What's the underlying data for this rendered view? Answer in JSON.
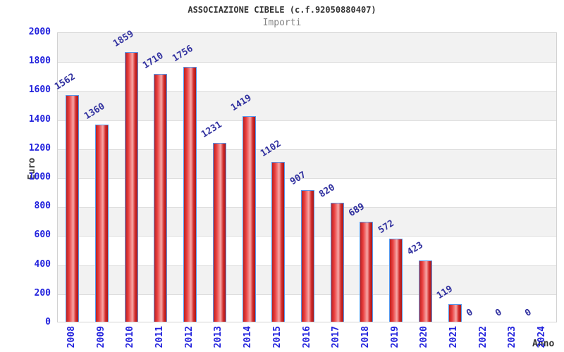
{
  "header": {
    "title": "ASSOCIAZIONE CIBELE (c.f.92050880407)",
    "subtitle": "Importi"
  },
  "chart_data": {
    "type": "bar",
    "title": "ASSOCIAZIONE CIBELE (c.f.92050880407)",
    "subtitle": "Importi",
    "xlabel": "Anno",
    "ylabel": "Euro",
    "categories": [
      "2008",
      "2009",
      "2010",
      "2011",
      "2012",
      "2013",
      "2014",
      "2015",
      "2016",
      "2017",
      "2018",
      "2019",
      "2020",
      "2021",
      "2022",
      "2023",
      "2024"
    ],
    "values": [
      1562,
      1360,
      1859,
      1710,
      1756,
      1231,
      1419,
      1102,
      907,
      820,
      689,
      572,
      423,
      119,
      0,
      0,
      0
    ],
    "ylim": [
      0,
      2000
    ],
    "ytick_step": 200,
    "grid": true,
    "legend": "none",
    "colors": {
      "bar_border": "#5599ee",
      "bar_gradient": [
        "#bb2020",
        "#ea4040",
        "#f7a8a8",
        "#d22a2a",
        "#a81818"
      ],
      "tick_label": "#2222dd",
      "value_label": "#30309f",
      "band": "#f2f2f2",
      "gridline": "#dddddd",
      "plot_border": "#d2d2d2",
      "title": "#333333",
      "subtitle": "#848484",
      "axis_title": "#404040"
    }
  }
}
